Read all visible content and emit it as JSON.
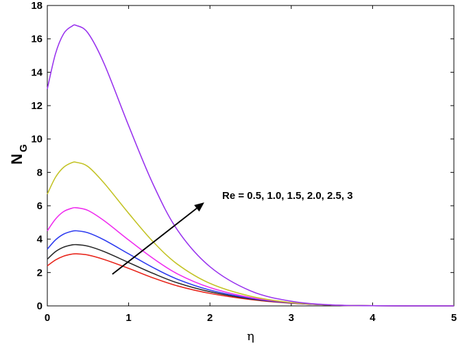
{
  "chart_data": {
    "type": "line",
    "xlabel": "η",
    "ylabel": {
      "main": "N",
      "subscript": "G"
    },
    "xlim": [
      0,
      5
    ],
    "ylim": [
      0,
      18
    ],
    "xticks": [
      "0",
      "1",
      "2",
      "3",
      "4",
      "5"
    ],
    "yticks": [
      "0",
      "2",
      "4",
      "6",
      "8",
      "10",
      "12",
      "14",
      "16",
      "18"
    ],
    "grid": false,
    "annotation": {
      "text": "Re = 0.5, 1.0, 1.5, 2.0, 2.5, 3",
      "arrow_from": [
        0.8,
        1.9
      ],
      "arrow_to": [
        1.93,
        6.2
      ]
    },
    "series": [
      {
        "color": "#e8261c",
        "x": [
          0,
          0.1,
          0.2,
          0.3,
          0.36,
          0.5,
          0.7,
          1.0,
          1.3,
          1.6,
          2.0,
          2.5,
          3.0,
          3.5,
          4.0,
          5.0
        ],
        "y": [
          2.4,
          2.75,
          2.98,
          3.1,
          3.12,
          3.05,
          2.78,
          2.25,
          1.68,
          1.2,
          0.75,
          0.38,
          0.16,
          0.05,
          0.01,
          0.0
        ]
      },
      {
        "color": "#2b2b2b",
        "x": [
          0,
          0.1,
          0.2,
          0.3,
          0.36,
          0.5,
          0.7,
          1.0,
          1.3,
          1.6,
          2.0,
          2.5,
          3.0,
          3.5,
          4.0,
          5.0
        ],
        "y": [
          2.8,
          3.25,
          3.52,
          3.65,
          3.67,
          3.58,
          3.25,
          2.6,
          1.95,
          1.38,
          0.85,
          0.42,
          0.17,
          0.05,
          0.01,
          0.0
        ]
      },
      {
        "color": "#2f3df0",
        "x": [
          0,
          0.1,
          0.2,
          0.3,
          0.36,
          0.5,
          0.7,
          1.0,
          1.3,
          1.6,
          2.0,
          2.5,
          3.0,
          3.5,
          4.0,
          5.0
        ],
        "y": [
          3.4,
          3.95,
          4.3,
          4.47,
          4.5,
          4.38,
          3.95,
          3.12,
          2.3,
          1.6,
          0.95,
          0.46,
          0.18,
          0.05,
          0.01,
          0.0
        ]
      },
      {
        "color": "#ef2bef",
        "x": [
          0,
          0.1,
          0.2,
          0.3,
          0.36,
          0.5,
          0.7,
          1.0,
          1.3,
          1.6,
          2.0,
          2.5,
          3.0,
          3.5,
          4.0,
          5.0
        ],
        "y": [
          4.5,
          5.2,
          5.65,
          5.85,
          5.88,
          5.72,
          5.1,
          3.95,
          2.85,
          1.92,
          1.1,
          0.5,
          0.19,
          0.05,
          0.01,
          0.0
        ]
      },
      {
        "color": "#c3c326",
        "x": [
          0,
          0.1,
          0.2,
          0.3,
          0.36,
          0.5,
          0.7,
          1.0,
          1.3,
          1.6,
          2.0,
          2.5,
          3.0,
          3.5,
          4.0,
          5.0
        ],
        "y": [
          6.7,
          7.7,
          8.3,
          8.58,
          8.6,
          8.35,
          7.35,
          5.55,
          3.85,
          2.5,
          1.35,
          0.58,
          0.2,
          0.05,
          0.01,
          0.0
        ]
      },
      {
        "color": "#9933ee",
        "x": [
          0,
          0.1,
          0.2,
          0.3,
          0.36,
          0.5,
          0.7,
          1.0,
          1.3,
          1.6,
          2.0,
          2.5,
          3.0,
          3.5,
          4.0,
          5.0
        ],
        "y": [
          13.0,
          15.1,
          16.3,
          16.75,
          16.8,
          16.35,
          14.5,
          10.8,
          7.3,
          4.55,
          2.35,
          0.9,
          0.28,
          0.06,
          0.01,
          0.0
        ]
      }
    ]
  }
}
